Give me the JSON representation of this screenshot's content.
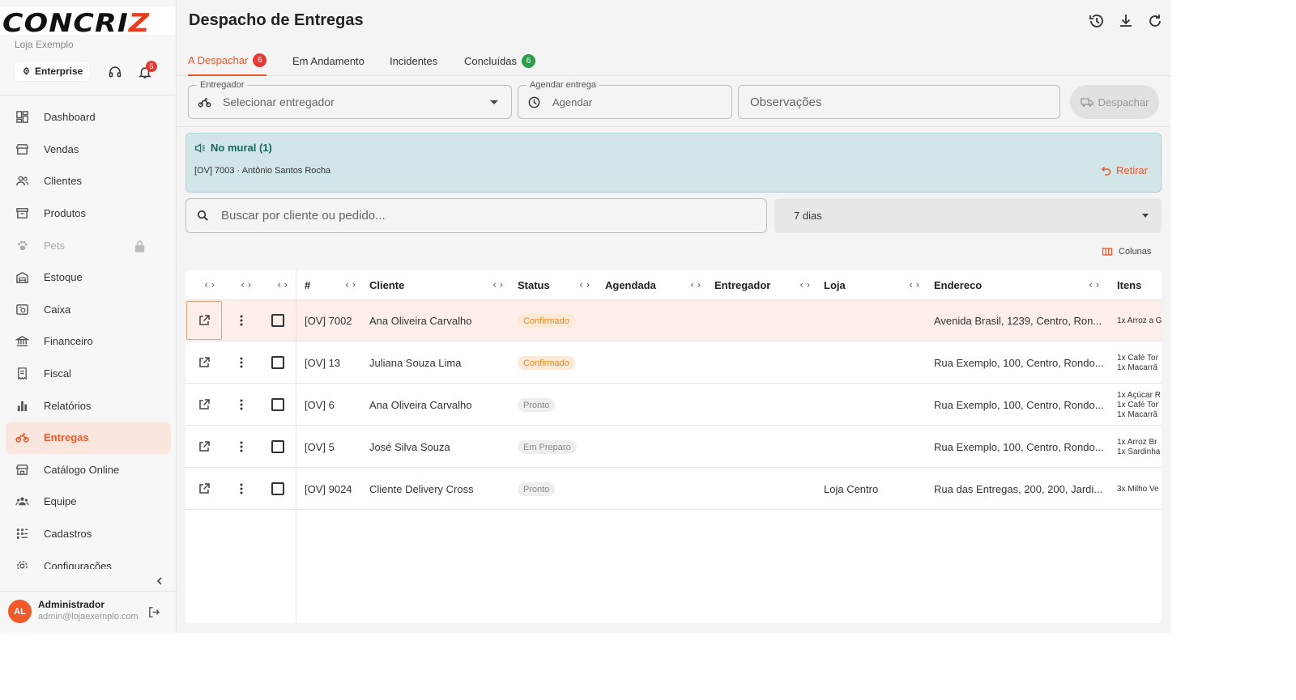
{
  "sidebar": {
    "logo_main": "CONCRI",
    "logo_accent": "Z",
    "store": "Loja Exemplo",
    "plan": "Enterprise",
    "notifications_count": "5",
    "items": [
      {
        "label": "Dashboard",
        "icon": "dashboard-icon"
      },
      {
        "label": "Vendas",
        "icon": "store-icon"
      },
      {
        "label": "Clientes",
        "icon": "people-icon"
      },
      {
        "label": "Produtos",
        "icon": "box-icon"
      },
      {
        "label": "Pets",
        "icon": "paw-icon",
        "locked": true
      },
      {
        "label": "Estoque",
        "icon": "warehouse-icon"
      },
      {
        "label": "Caixa",
        "icon": "register-icon"
      },
      {
        "label": "Financeiro",
        "icon": "bank-icon"
      },
      {
        "label": "Fiscal",
        "icon": "receipt-icon"
      },
      {
        "label": "Relatórios",
        "icon": "bar-chart-icon"
      },
      {
        "label": "Entregas",
        "icon": "motorcycle-icon",
        "active": true
      },
      {
        "label": "Catálogo Online",
        "icon": "storefront-icon"
      },
      {
        "label": "Equipe",
        "icon": "team-icon"
      },
      {
        "label": "Cadastros",
        "icon": "grid-list-icon"
      },
      {
        "label": "Configurações",
        "icon": "gear-icon"
      }
    ],
    "user": {
      "initials": "AL",
      "name": "Administrador",
      "email": "admin@lojaexemplo.com"
    }
  },
  "header": {
    "title": "Despacho de Entregas"
  },
  "tabs": [
    {
      "label": "A Despachar",
      "count": "6",
      "active": true
    },
    {
      "label": "Em Andamento"
    },
    {
      "label": "Incidentes"
    },
    {
      "label": "Concluídas",
      "count": "6"
    }
  ],
  "dispatch_form": {
    "courier_label": "Entregador",
    "courier_placeholder": "Selecionar entregador",
    "schedule_label": "Agendar entrega",
    "schedule_placeholder": "Agendar",
    "notes_placeholder": "Observações",
    "dispatch_label": "Despachar"
  },
  "mural": {
    "title": "No mural (1)",
    "item": "[OV] 7003 · Antônio Santos Rocha",
    "remove_label": "Retirar"
  },
  "filters": {
    "search_placeholder": "Buscar por cliente ou pedido...",
    "period": "7 dias",
    "columns_label": "Colunas"
  },
  "table": {
    "headers": {
      "id": "#",
      "client": "Cliente",
      "status": "Status",
      "scheduled": "Agendada",
      "courier": "Entregador",
      "store": "Loja",
      "address": "Endereco",
      "items": "Itens"
    },
    "rows": [
      {
        "id": "[OV] 7002",
        "client": "Ana Oliveira Carvalho",
        "status": "Confirmado",
        "status_type": "confirmado",
        "scheduled": "",
        "courier": "",
        "store": "",
        "address": "Avenida Brasil, 1239, Centro, Ron...",
        "items": [
          "1x Arroz a G"
        ]
      },
      {
        "id": "[OV] 13",
        "client": "Juliana Souza Lima",
        "status": "Confirmado",
        "status_type": "confirmado",
        "scheduled": "",
        "courier": "",
        "store": "",
        "address": "Rua Exemplo, 100, Centro, Rondo...",
        "items": [
          "1x Café Tor",
          "1x Macarrã"
        ]
      },
      {
        "id": "[OV] 6",
        "client": "Ana Oliveira Carvalho",
        "status": "Pronto",
        "status_type": "pronto",
        "scheduled": "",
        "courier": "",
        "store": "",
        "address": "Rua Exemplo, 100, Centro, Rondo...",
        "items": [
          "1x Açúcar R",
          "1x Café Tor",
          "1x Macarrã"
        ]
      },
      {
        "id": "[OV] 5",
        "client": "José Silva Souza",
        "status": "Em Preparo",
        "status_type": "preparo",
        "scheduled": "",
        "courier": "",
        "store": "",
        "address": "Rua Exemplo, 100, Centro, Rondo...",
        "items": [
          "1x Arroz Br",
          "1x Sardinha"
        ]
      },
      {
        "id": "[OV] 9024",
        "client": "Cliente Delivery Cross",
        "status": "Pronto",
        "status_type": "pronto",
        "scheduled": "",
        "courier": "",
        "store": "Loja Centro",
        "address": "Rua das Entregas, 200, 200, Jardi...",
        "items": [
          "3x Milho Ve"
        ]
      }
    ]
  },
  "colors": {
    "accent": "#e8582a",
    "active_bg": "#fbe6df",
    "mural_bg": "#d2e6e9",
    "mural_title": "#17695c",
    "badge_red": "#e53935",
    "badge_green": "#2e9d4a"
  }
}
